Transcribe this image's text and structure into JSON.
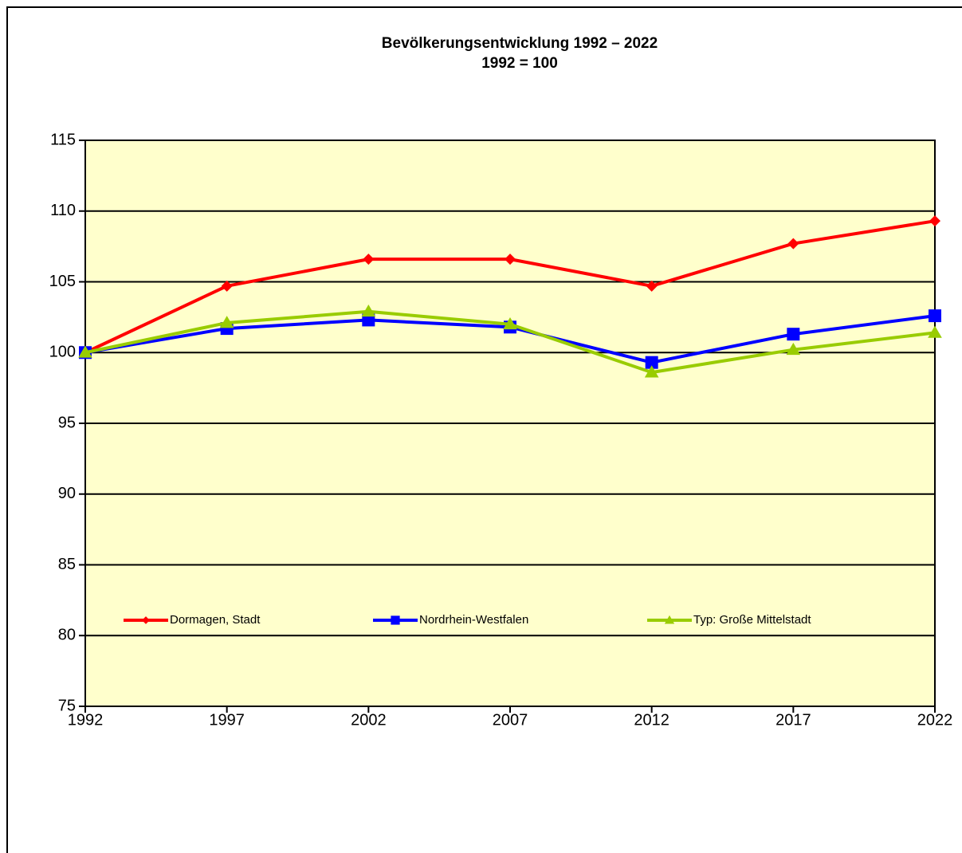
{
  "chart_data": {
    "type": "line",
    "title": "Bevölkerungsentwicklung 1992 – 2022",
    "subtitle": "1992 = 100",
    "x": [
      1992,
      1997,
      2002,
      2007,
      2012,
      2017,
      2022
    ],
    "xlim": [
      1992,
      2022
    ],
    "xticks": [
      1992,
      1997,
      2002,
      2007,
      2012,
      2017,
      2022
    ],
    "ylim": [
      75,
      115
    ],
    "yticks": [
      75,
      80,
      85,
      90,
      95,
      100,
      105,
      110,
      115
    ],
    "grid": true,
    "legend": "bottom",
    "series": [
      {
        "name": "Dormagen, Stadt",
        "color": "#ff0000",
        "marker": "diamond",
        "values": [
          100,
          104.7,
          106.6,
          106.6,
          104.7,
          107.7,
          109.3
        ]
      },
      {
        "name": "Nordrhein-Westfalen",
        "color": "#0000ff",
        "marker": "square",
        "values": [
          100,
          101.7,
          102.3,
          101.8,
          99.3,
          101.3,
          102.6
        ]
      },
      {
        "name": "Typ: Große Mittelstadt",
        "color": "#99cc00",
        "marker": "triangle",
        "values": [
          100,
          102.1,
          102.9,
          102.0,
          98.6,
          100.2,
          101.4
        ]
      }
    ]
  }
}
